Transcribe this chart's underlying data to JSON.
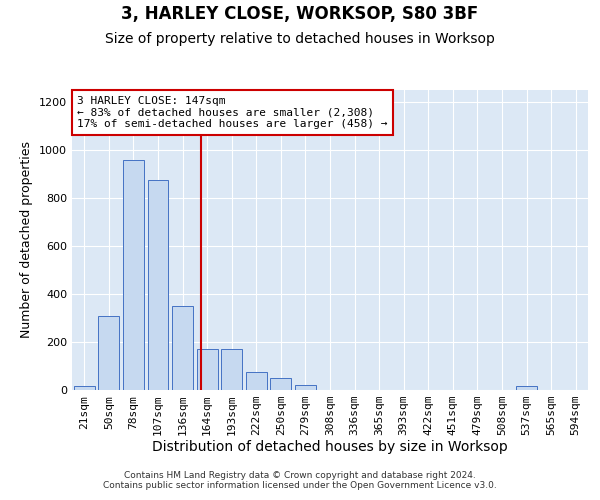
{
  "title": "3, HARLEY CLOSE, WORKSOP, S80 3BF",
  "subtitle": "Size of property relative to detached houses in Worksop",
  "xlabel": "Distribution of detached houses by size in Worksop",
  "ylabel": "Number of detached properties",
  "categories": [
    "21sqm",
    "50sqm",
    "78sqm",
    "107sqm",
    "136sqm",
    "164sqm",
    "193sqm",
    "222sqm",
    "250sqm",
    "279sqm",
    "308sqm",
    "336sqm",
    "365sqm",
    "393sqm",
    "422sqm",
    "451sqm",
    "479sqm",
    "508sqm",
    "537sqm",
    "565sqm",
    "594sqm"
  ],
  "values": [
    18,
    310,
    960,
    875,
    350,
    170,
    170,
    75,
    50,
    20,
    0,
    0,
    0,
    0,
    0,
    0,
    0,
    0,
    18,
    0,
    0
  ],
  "bar_color": "#c6d9f0",
  "bar_edge_color": "#4472c4",
  "red_line_index": 4.73,
  "annotation_text": "3 HARLEY CLOSE: 147sqm\n← 83% of detached houses are smaller (2,308)\n17% of semi-detached houses are larger (458) →",
  "annotation_box_color": "#ffffff",
  "annotation_box_edge_color": "#cc0000",
  "footer_text": "Contains HM Land Registry data © Crown copyright and database right 2024.\nContains public sector information licensed under the Open Government Licence v3.0.",
  "ylim": [
    0,
    1250
  ],
  "yticks": [
    0,
    200,
    400,
    600,
    800,
    1000,
    1200
  ],
  "background_color": "#dce8f5",
  "grid_color": "#ffffff",
  "title_fontsize": 12,
  "subtitle_fontsize": 10,
  "tick_fontsize": 8,
  "ylabel_fontsize": 9,
  "xlabel_fontsize": 10,
  "footer_fontsize": 6.5
}
